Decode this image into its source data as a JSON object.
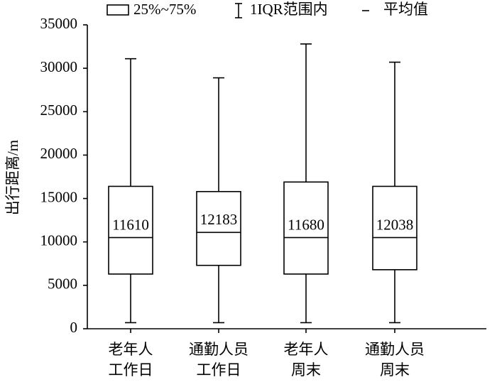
{
  "chart_data": {
    "type": "box",
    "y_label": "出行距离/m",
    "legend": [
      "25%~75%",
      "1IQR范围内",
      "平均值"
    ],
    "categories": [
      [
        "老年人",
        "工作日"
      ],
      [
        "通勤人员",
        "工作日"
      ],
      [
        "老年人",
        "周末"
      ],
      [
        "通勤人员",
        "周末"
      ]
    ],
    "boxes": [
      {
        "low": 700,
        "q1": 6300,
        "median": 10500,
        "q3": 16400,
        "high": 31100,
        "mean": 11610
      },
      {
        "low": 700,
        "q1": 7300,
        "median": 11100,
        "q3": 15800,
        "high": 28900,
        "mean": 12183
      },
      {
        "low": 700,
        "q1": 6300,
        "median": 10500,
        "q3": 16900,
        "high": 32800,
        "mean": 11680
      },
      {
        "low": 700,
        "q1": 6800,
        "median": 10500,
        "q3": 16400,
        "high": 30700,
        "mean": 12038
      }
    ],
    "color": "#000000",
    "ylim": [
      0,
      35000
    ],
    "yticks": [
      0,
      5000,
      10000,
      15000,
      20000,
      25000,
      30000,
      35000
    ]
  }
}
